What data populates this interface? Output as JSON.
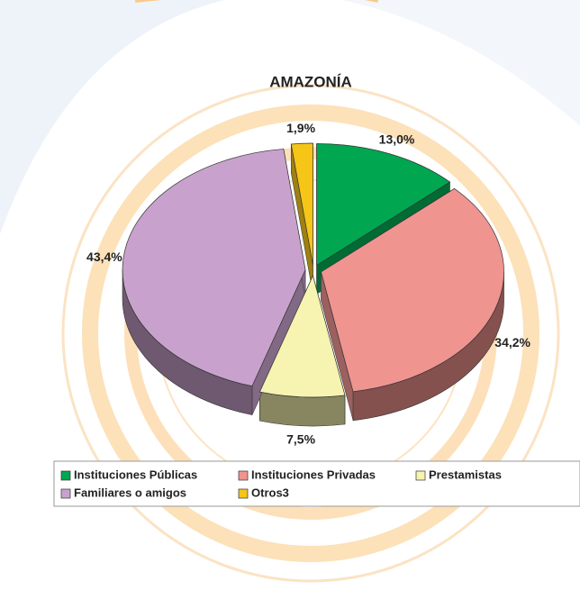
{
  "chart_data": {
    "type": "pie",
    "title": "AMAZONÍA",
    "categories": [
      "Instituciones Públicas",
      "Instituciones Privadas",
      "Prestamistas",
      "Familiares o amigos",
      "Otros3"
    ],
    "values": [
      13.0,
      34.2,
      7.5,
      43.4,
      1.9
    ],
    "value_labels": [
      "13,0%",
      "34,2%",
      "7,5%",
      "43,4%",
      "1,9%"
    ],
    "colors": [
      "#00a650",
      "#f09490",
      "#f7f3b0",
      "#c8a2cc",
      "#f5c518"
    ],
    "legend": "bottom"
  }
}
